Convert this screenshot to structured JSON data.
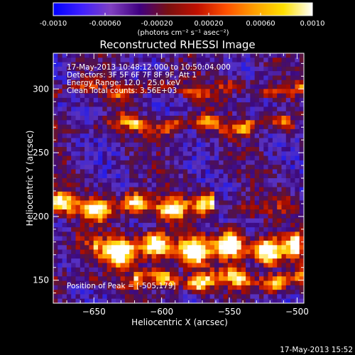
{
  "chart_data": {
    "type": "heatmap",
    "title": "Reconstructed RHESSI Image",
    "xlabel": "Heliocentric X (arcsec)",
    "ylabel": "Heliocentric Y (arcsec)",
    "xlim": [
      -680,
      -495
    ],
    "ylim": [
      132,
      328
    ],
    "x_ticks": [
      -650,
      -600,
      -550,
      -500
    ],
    "y_ticks": [
      150,
      200,
      250,
      300
    ],
    "colorbar": {
      "range": [
        -0.001,
        0.001
      ],
      "ticks": [
        -0.001,
        -0.0006,
        -0.0002,
        0.0002,
        0.0006,
        0.001
      ],
      "tick_labels": [
        "-0.0010",
        "-0.00060",
        "-0.00020",
        "0.00020",
        "0.00060",
        "0.0010"
      ],
      "label": "(photons cm⁻² s⁻¹ asec⁻²)",
      "colormap": [
        "#0000ff",
        "#4020ff",
        "#8040c0",
        "#400080",
        "#7a1010",
        "#c01000",
        "#ff5000",
        "#ffa000",
        "#ffe000",
        "#ffffff"
      ]
    },
    "overlay_text": [
      "17-May-2013 10:48:12.000 to 10:50:04.000",
      "Detectors: 3F 5F 6F 7F 8F 9F, Att 1",
      "Energy Range: 12.0 - 25.0 keV",
      "Clean     Total counts: 3.56E+03"
    ],
    "peak_label": "Position of Peak = [-505,179]",
    "peak_position": [
      -505,
      179
    ],
    "bands": [
      {
        "y": 175,
        "width": 10,
        "level": 0.95,
        "x_from": -650,
        "x_to": -498
      },
      {
        "y": 208,
        "width": 8,
        "level": 0.75,
        "x_from": -680,
        "x_to": -560
      },
      {
        "y": 150,
        "width": 7,
        "level": 0.7,
        "x_from": -620,
        "x_to": -495
      },
      {
        "y": 272,
        "width": 6,
        "level": 0.5,
        "x_from": -640,
        "x_to": -500
      },
      {
        "y": 300,
        "width": 5,
        "level": 0.35,
        "x_from": -680,
        "x_to": -495
      }
    ]
  },
  "footer_timestamp": "17-May-2013 15:52"
}
